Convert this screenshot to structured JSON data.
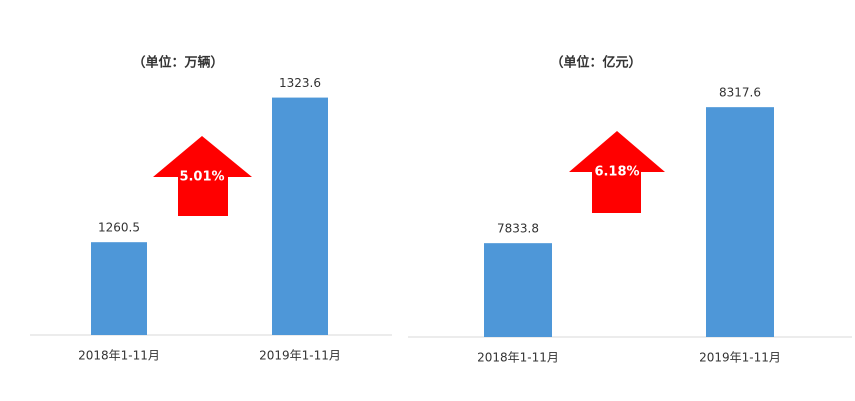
{
  "chart_data": [
    {
      "type": "bar",
      "subtitle": "（单位：万辆）",
      "categories": [
        "2018年1-11月",
        "2019年1-11月"
      ],
      "values": [
        1260.5,
        1323.6
      ],
      "color": "#4e97d8",
      "ylim": [
        1220,
        1340
      ],
      "annotation": "5.01%"
    },
    {
      "type": "bar",
      "subtitle": "（单位：亿元）",
      "categories": [
        "2018年1-11月",
        "2019年1-11月"
      ],
      "values": [
        7833.8,
        8317.6
      ],
      "color": "#4e97d8",
      "ylim": [
        7500,
        8400
      ],
      "annotation": "6.18%"
    }
  ]
}
